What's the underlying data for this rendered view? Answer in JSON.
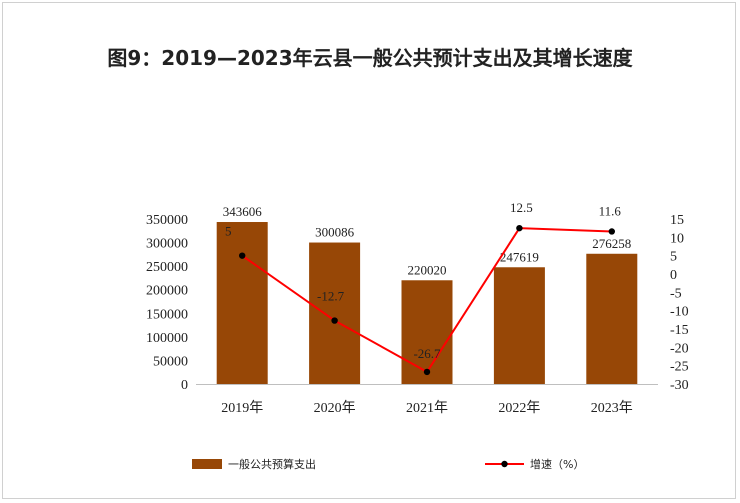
{
  "chart_data": {
    "type": "bar",
    "title": "图9：2019—2023年云县一般公共预计支出及其增长速度",
    "categories": [
      "2019年",
      "2020年",
      "2021年",
      "2022年",
      "2023年"
    ],
    "series": [
      {
        "name": "一般公共预算支出",
        "type": "bar",
        "axis": "left",
        "values": [
          343606,
          300086,
          220020,
          247619,
          276258
        ],
        "value_labels": [
          "343606",
          "300086",
          "220020",
          "247619",
          "276258"
        ],
        "color": "#974706"
      },
      {
        "name": "增速（%）",
        "type": "line",
        "axis": "right",
        "values": [
          5,
          -12.7,
          -26.7,
          12.5,
          11.6
        ],
        "value_labels": [
          "5",
          "-12.7",
          "-26.7",
          "12.5",
          "11.6"
        ],
        "color": "#ff0000"
      }
    ],
    "left_axis": {
      "ylim": [
        0,
        350000
      ],
      "ticks": [
        "350000",
        "300000",
        "250000",
        "200000",
        "150000",
        "100000",
        "50000",
        "0"
      ]
    },
    "right_axis": {
      "ylim": [
        -30,
        15
      ],
      "ticks": [
        "15",
        "10",
        "5",
        "0",
        "-5",
        "-10",
        "-15",
        "-20",
        "-25",
        "-30"
      ]
    },
    "grid": false,
    "legend_position": "bottom"
  }
}
